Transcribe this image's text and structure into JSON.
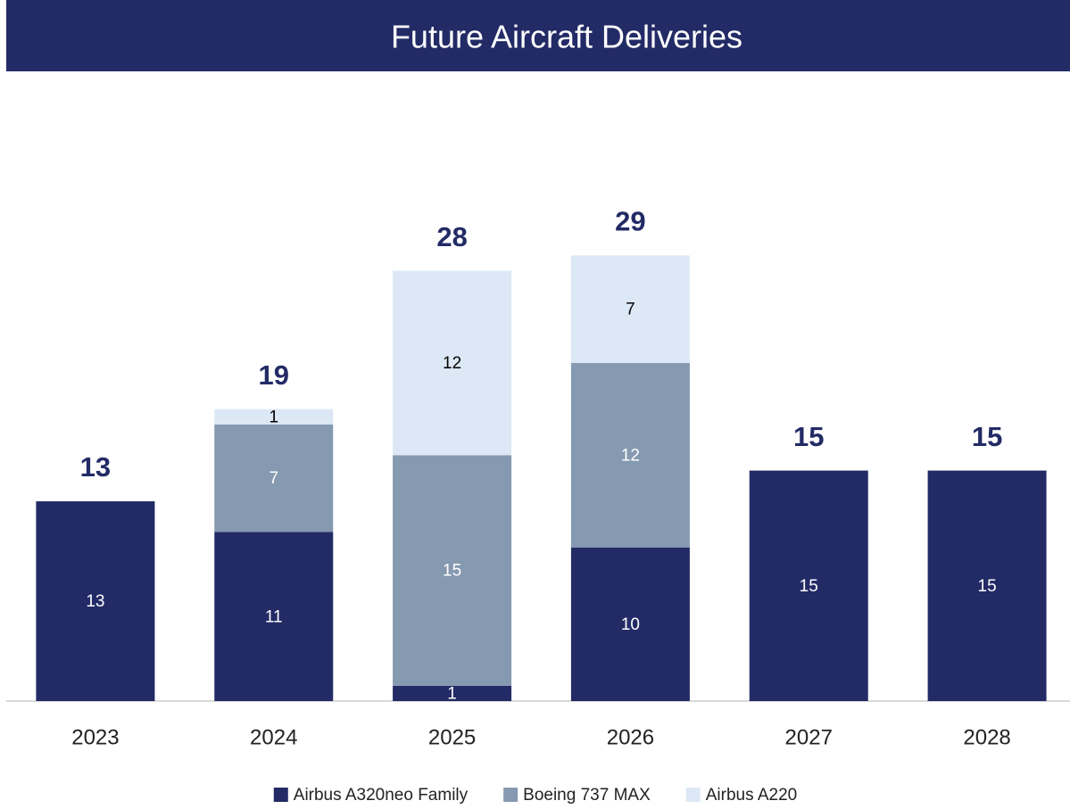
{
  "chart_data": {
    "type": "stacked_bar",
    "title": "Future Aircraft Deliveries",
    "categories": [
      "2023",
      "2024",
      "2025",
      "2026",
      "2027",
      "2028"
    ],
    "series": [
      {
        "name": "Airbus A320neo Family",
        "color": "#232b66",
        "label_color": "#ffffff",
        "values": [
          13,
          11,
          1,
          10,
          15,
          15
        ]
      },
      {
        "name": "Boeing 737 MAX",
        "color": "#8599b0",
        "label_color": "#ffffff",
        "values": [
          null,
          7,
          15,
          12,
          null,
          null
        ]
      },
      {
        "name": "Airbus A220",
        "color": "#dce8f5",
        "label_color": "#000000",
        "values": [
          null,
          1,
          12,
          7,
          null,
          null
        ]
      }
    ],
    "totals": [
      13,
      19,
      28,
      29,
      15,
      15
    ],
    "ylim": [
      0,
      35
    ],
    "legend": "bottom"
  }
}
